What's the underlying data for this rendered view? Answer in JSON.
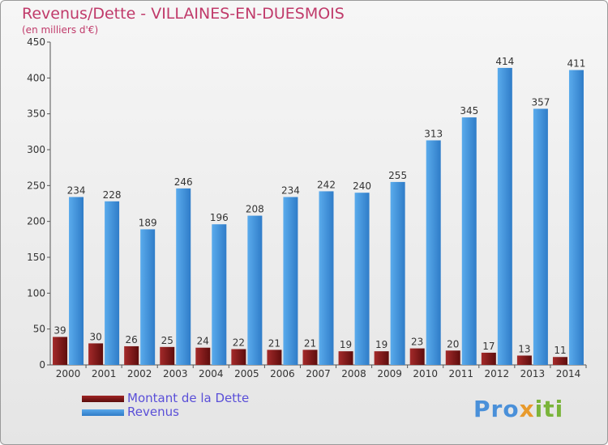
{
  "chart_data": {
    "type": "bar",
    "title": "Revenus/Dette - VILLAINES-EN-DUESMOIS",
    "subtitle": "(en milliers d'€)",
    "categories": [
      "2000",
      "2001",
      "2002",
      "2003",
      "2004",
      "2005",
      "2006",
      "2007",
      "2008",
      "2009",
      "2010",
      "2011",
      "2012",
      "2013",
      "2014"
    ],
    "series": [
      {
        "name": "Montant de la Dette",
        "color": "#7a1414",
        "values": [
          39,
          30,
          26,
          25,
          24,
          22,
          21,
          21,
          19,
          19,
          23,
          20,
          17,
          13,
          11
        ]
      },
      {
        "name": "Revenus",
        "color": "#3d8fdc",
        "values": [
          234,
          228,
          189,
          246,
          196,
          208,
          234,
          242,
          240,
          255,
          313,
          345,
          414,
          357,
          411
        ]
      }
    ],
    "yticks": [
      "0",
      "50",
      "100",
      "150",
      "200",
      "250",
      "300",
      "350",
      "400",
      "450"
    ],
    "ylim": [
      0,
      450
    ],
    "grid": false,
    "legend": "bottom-left"
  },
  "logo": {
    "text": "Proxiti"
  }
}
